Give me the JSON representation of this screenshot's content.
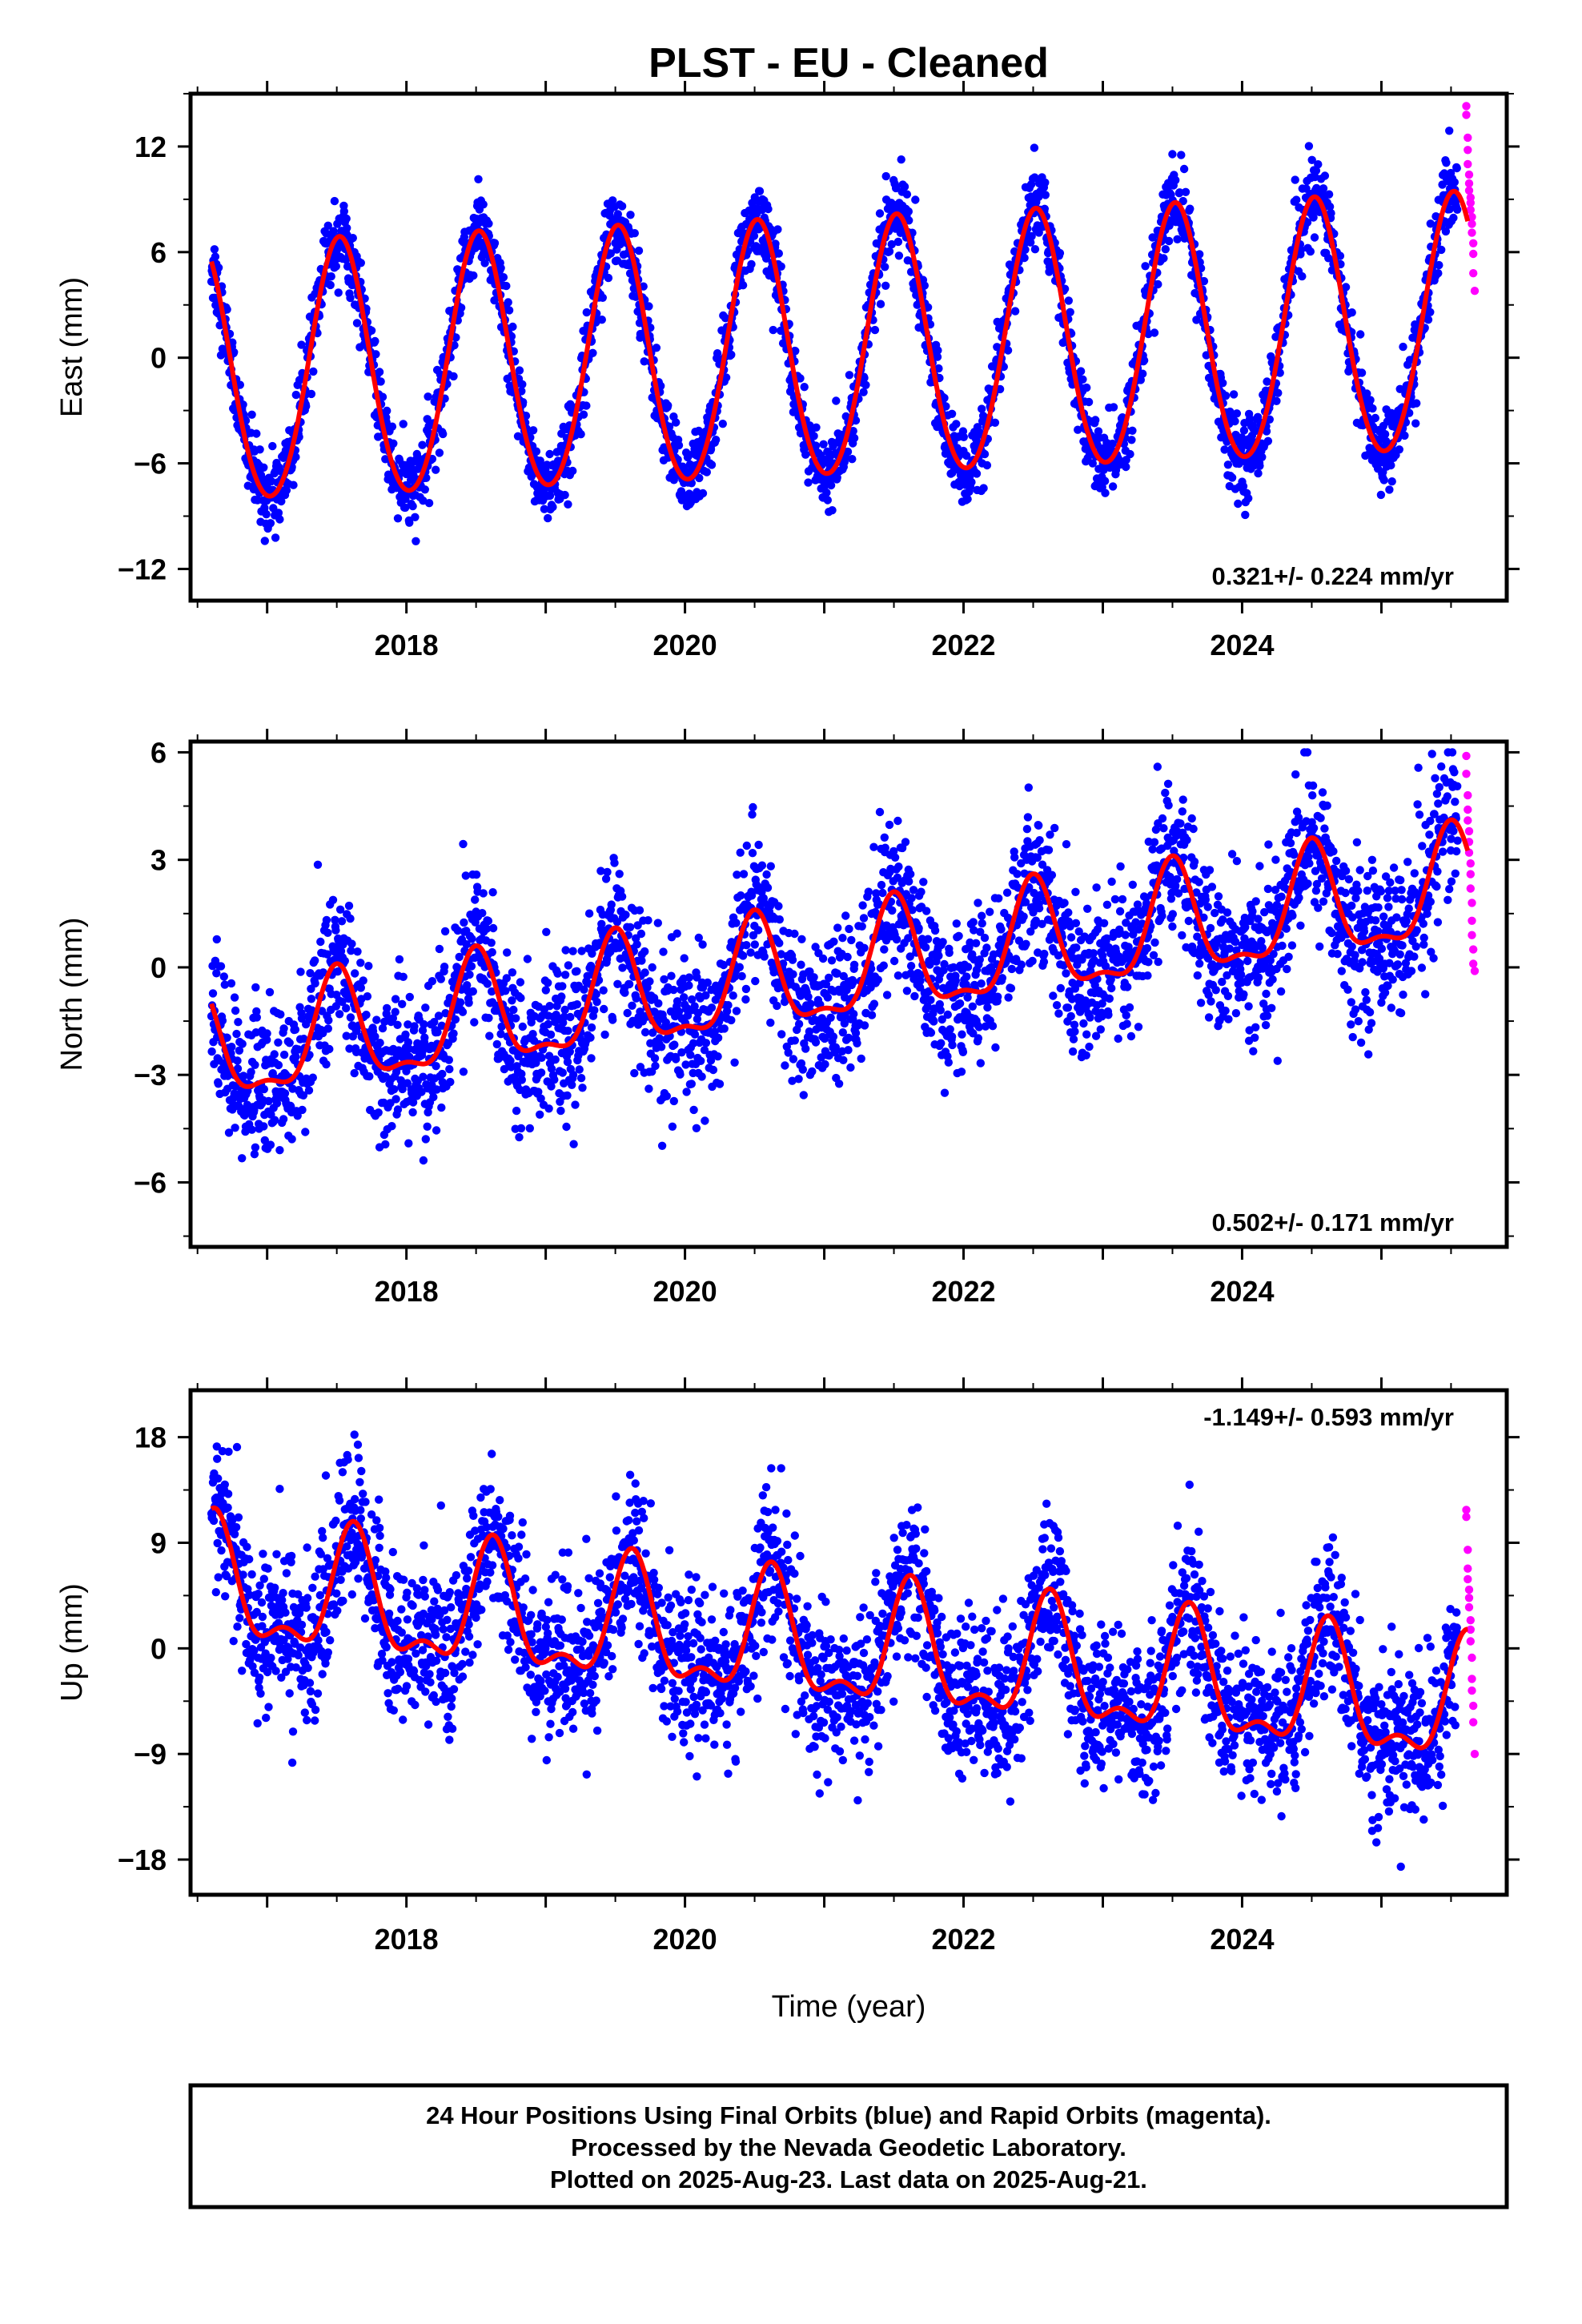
{
  "title": "PLST  - EU - Cleaned",
  "colors": {
    "final": "#0000ff",
    "rapid": "#ff00ff",
    "fit": "#ff0000",
    "axis": "#000000"
  },
  "chart_data": [
    {
      "type": "scatter",
      "ylabel": "East (mm)",
      "xlabel": "",
      "xlim": [
        2016.45,
        2025.9
      ],
      "ylim": [
        -13.8,
        15.0
      ],
      "yticks": [
        -12,
        -6,
        0,
        6,
        12
      ],
      "xticks": [
        2018,
        2020,
        2022,
        2024
      ],
      "rate_label": "0.321+/- 0.224 mm/yr",
      "rate_position": "bottom-right",
      "model": {
        "start": 2016.6,
        "end": 2025.62,
        "offset": -1.2,
        "trend": 0.321,
        "annual_amp": 7.3,
        "annual_peak": 0.52,
        "semi_amp": 0.5
      },
      "final_series": {
        "name": "Final Orbits",
        "start": 2016.6,
        "end": 2025.55,
        "noise": 1.1
      },
      "rapid_series": {
        "name": "Rapid Orbits",
        "x": [
          2025.61,
          2025.61,
          2025.62,
          2025.62,
          2025.62,
          2025.63,
          2025.63,
          2025.63,
          2025.64,
          2025.64,
          2025.64,
          2025.65,
          2025.65,
          2025.65,
          2025.66,
          2025.66,
          2025.66,
          2025.67
        ],
        "y": [
          14.3,
          13.8,
          12.5,
          11.8,
          11.0,
          10.4,
          9.9,
          9.5,
          9.1,
          8.8,
          8.4,
          8.0,
          7.6,
          7.1,
          6.5,
          5.9,
          4.8,
          3.8
        ]
      }
    },
    {
      "type": "scatter",
      "ylabel": "North (mm)",
      "xlabel": "",
      "xlim": [
        2016.45,
        2025.9
      ],
      "ylim": [
        -7.8,
        6.3
      ],
      "yticks": [
        -6,
        -3,
        0,
        3,
        6
      ],
      "xticks": [
        2018,
        2020,
        2022,
        2024
      ],
      "rate_label": "0.502+/- 0.171 mm/yr",
      "rate_position": "bottom-right",
      "model": {
        "start": 2016.6,
        "end": 2025.62,
        "offset": -2.4,
        "trend": 0.502,
        "annual_amp": 1.5,
        "annual_peak": 0.5,
        "semi_amp": 0.55
      },
      "final_series": {
        "name": "Final Orbits",
        "start": 2016.6,
        "end": 2025.55,
        "noise": 1.05
      },
      "rapid_series": {
        "name": "Rapid Orbits",
        "x": [
          2025.61,
          2025.61,
          2025.62,
          2025.62,
          2025.62,
          2025.63,
          2025.63,
          2025.63,
          2025.64,
          2025.64,
          2025.64,
          2025.65,
          2025.65,
          2025.65,
          2025.66,
          2025.66,
          2025.67
        ],
        "y": [
          5.9,
          5.4,
          4.8,
          4.4,
          4.1,
          3.8,
          3.5,
          3.2,
          2.9,
          2.6,
          2.2,
          1.8,
          1.3,
          0.9,
          0.5,
          0.1,
          -0.1
        ]
      }
    },
    {
      "type": "scatter",
      "ylabel": "Up (mm)",
      "xlabel": "Time (year)",
      "xlim": [
        2016.45,
        2025.9
      ],
      "ylim": [
        -21.0,
        22.0
      ],
      "yticks": [
        -18,
        -9,
        0,
        9,
        18
      ],
      "xticks": [
        2018,
        2020,
        2022,
        2024
      ],
      "rate_label": "-1.149+/- 0.593 mm/yr",
      "rate_position": "top-right",
      "model": {
        "start": 2016.6,
        "end": 2025.62,
        "offset": 5.0,
        "trend": -1.149,
        "annual_amp": 4.8,
        "annual_peak": 0.62,
        "semi_amp": 2.2
      },
      "final_series": {
        "name": "Final Orbits",
        "start": 2016.6,
        "end": 2025.55,
        "noise": 3.3
      },
      "rapid_series": {
        "name": "Rapid Orbits",
        "x": [
          2025.61,
          2025.61,
          2025.62,
          2025.62,
          2025.62,
          2025.63,
          2025.63,
          2025.63,
          2025.64,
          2025.64,
          2025.64,
          2025.65,
          2025.65,
          2025.65,
          2025.66,
          2025.66,
          2025.67
        ],
        "y": [
          11.8,
          11.2,
          8.4,
          6.8,
          5.9,
          5.0,
          4.3,
          3.5,
          2.4,
          1.6,
          0.6,
          -0.8,
          -2.6,
          -3.6,
          -4.9,
          -6.3,
          -9.0
        ]
      }
    }
  ],
  "caption": {
    "line1": "24 Hour Positions Using Final Orbits (blue) and Rapid Orbits (magenta).",
    "line2": "Processed by the Nevada Geodetic Laboratory.",
    "line3": "Plotted on 2025-Aug-23. Last data on 2025-Aug-21."
  }
}
